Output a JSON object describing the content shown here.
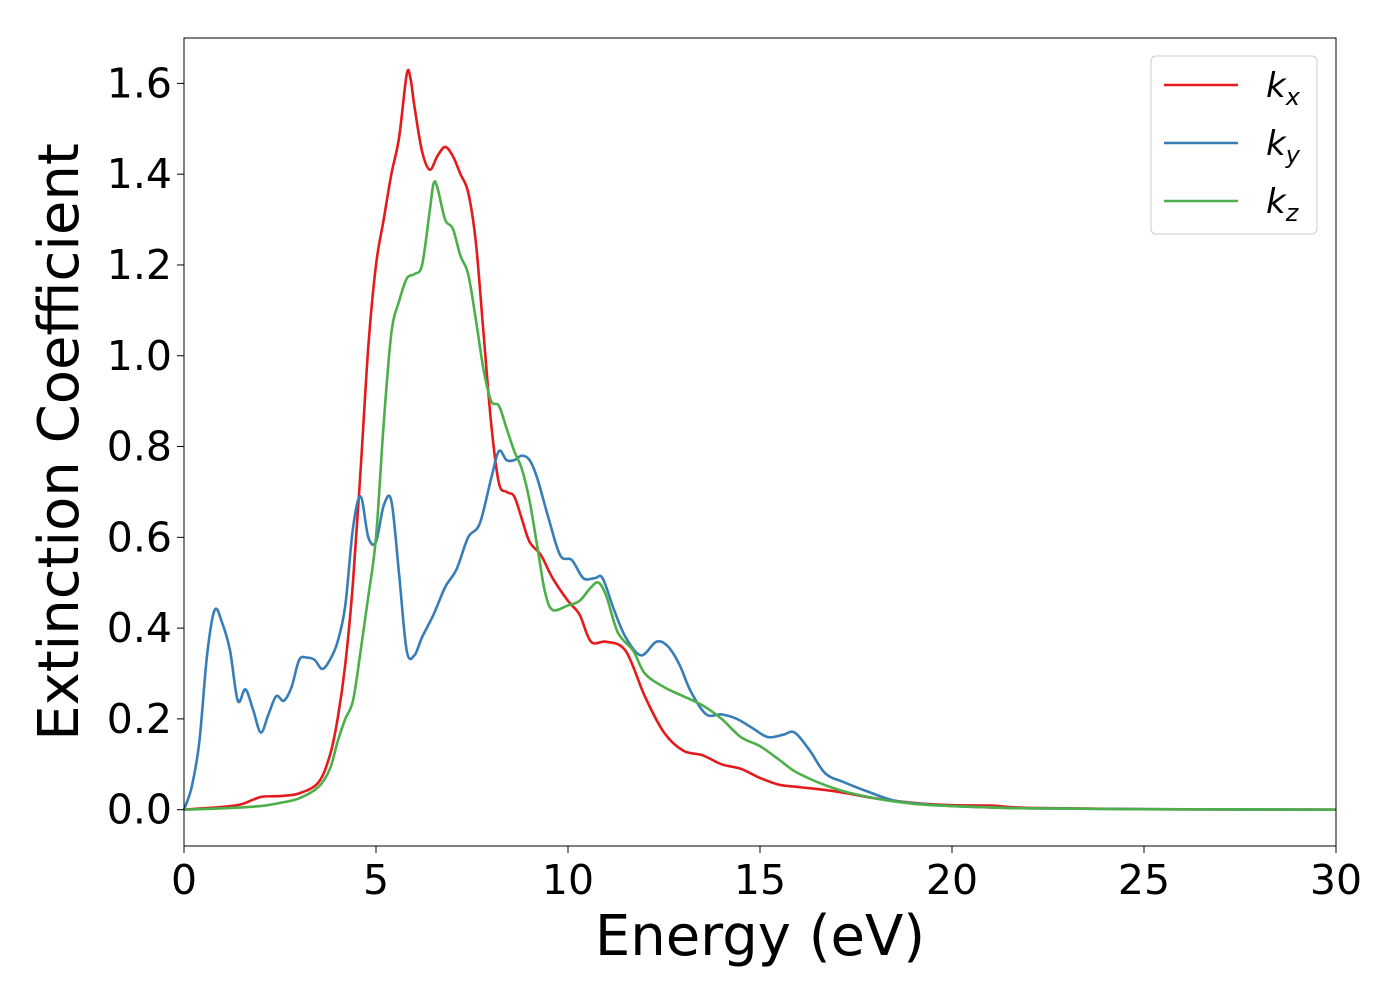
{
  "chart_data": {
    "type": "line",
    "title": "",
    "xlabel": "Energy (eV)",
    "ylabel": "Extinction Coefficient",
    "xlim": [
      0,
      30
    ],
    "ylim": [
      -0.08,
      1.7
    ],
    "xticks": [
      0,
      5,
      10,
      15,
      20,
      25,
      30
    ],
    "xtick_labels": [
      "0",
      "5",
      "10",
      "15",
      "20",
      "25",
      "30"
    ],
    "yticks": [
      0.0,
      0.2,
      0.4,
      0.6,
      0.8,
      1.0,
      1.2,
      1.4,
      1.6
    ],
    "ytick_labels": [
      "0.0",
      "0.2",
      "0.4",
      "0.6",
      "0.8",
      "1.0",
      "1.2",
      "1.4",
      "1.6"
    ],
    "grid": false,
    "legend_position": "top-right",
    "series": [
      {
        "name": "kx",
        "legend_base": "k",
        "legend_sub": "x",
        "color": "#e41a1c",
        "x": [
          0,
          0.5,
          1.0,
          1.5,
          2.0,
          2.5,
          3.0,
          3.5,
          3.8,
          4.0,
          4.2,
          4.4,
          4.6,
          4.8,
          5.0,
          5.2,
          5.4,
          5.6,
          5.8,
          5.9,
          6.0,
          6.2,
          6.4,
          6.6,
          6.8,
          7.0,
          7.2,
          7.4,
          7.6,
          7.8,
          8.0,
          8.2,
          8.4,
          8.6,
          8.8,
          9.0,
          9.3,
          9.6,
          10.0,
          10.3,
          10.6,
          11.0,
          11.5,
          12.0,
          12.5,
          13.0,
          13.5,
          14.0,
          14.5,
          15.0,
          15.5,
          16.0,
          17.0,
          18.0,
          19.0,
          20.0,
          21.0,
          22.0,
          25.0,
          30.0
        ],
        "y": [
          0.0,
          0.003,
          0.006,
          0.012,
          0.028,
          0.03,
          0.036,
          0.06,
          0.12,
          0.2,
          0.32,
          0.5,
          0.75,
          1.02,
          1.2,
          1.3,
          1.4,
          1.48,
          1.62,
          1.61,
          1.55,
          1.45,
          1.41,
          1.44,
          1.46,
          1.44,
          1.4,
          1.36,
          1.25,
          1.05,
          0.85,
          0.72,
          0.7,
          0.69,
          0.64,
          0.59,
          0.56,
          0.51,
          0.46,
          0.43,
          0.37,
          0.37,
          0.35,
          0.25,
          0.17,
          0.13,
          0.12,
          0.1,
          0.09,
          0.07,
          0.055,
          0.05,
          0.04,
          0.025,
          0.015,
          0.01,
          0.009,
          0.004,
          0.001,
          0.0
        ]
      },
      {
        "name": "ky",
        "legend_base": "k",
        "legend_sub": "y",
        "color": "#377eb8",
        "x": [
          0,
          0.2,
          0.4,
          0.6,
          0.8,
          1.0,
          1.2,
          1.4,
          1.6,
          1.8,
          2.0,
          2.2,
          2.4,
          2.6,
          2.8,
          3.0,
          3.2,
          3.4,
          3.6,
          3.8,
          4.0,
          4.2,
          4.4,
          4.6,
          4.8,
          5.0,
          5.2,
          5.4,
          5.6,
          5.8,
          6.0,
          6.2,
          6.5,
          6.8,
          7.1,
          7.4,
          7.7,
          8.0,
          8.2,
          8.4,
          8.6,
          8.8,
          9.0,
          9.2,
          9.5,
          9.8,
          10.1,
          10.4,
          10.7,
          10.9,
          11.2,
          11.5,
          11.9,
          12.3,
          12.6,
          12.9,
          13.2,
          13.6,
          14.0,
          14.4,
          14.8,
          15.2,
          15.6,
          15.9,
          16.3,
          16.7,
          17.2,
          17.8,
          18.5,
          19.3,
          20.0,
          21.0,
          22.0,
          25.0,
          30.0
        ],
        "y": [
          0.0,
          0.05,
          0.15,
          0.34,
          0.44,
          0.41,
          0.35,
          0.24,
          0.265,
          0.22,
          0.17,
          0.21,
          0.25,
          0.24,
          0.27,
          0.33,
          0.335,
          0.33,
          0.31,
          0.33,
          0.37,
          0.45,
          0.62,
          0.69,
          0.6,
          0.59,
          0.67,
          0.68,
          0.52,
          0.35,
          0.34,
          0.38,
          0.43,
          0.49,
          0.53,
          0.6,
          0.63,
          0.73,
          0.79,
          0.77,
          0.77,
          0.78,
          0.77,
          0.73,
          0.64,
          0.56,
          0.55,
          0.51,
          0.51,
          0.51,
          0.44,
          0.38,
          0.34,
          0.37,
          0.36,
          0.32,
          0.26,
          0.21,
          0.21,
          0.2,
          0.18,
          0.16,
          0.165,
          0.17,
          0.13,
          0.08,
          0.06,
          0.04,
          0.02,
          0.012,
          0.008,
          0.005,
          0.003,
          0.001,
          0.0
        ]
      },
      {
        "name": "kz",
        "legend_base": "k",
        "legend_sub": "z",
        "color": "#4daf4a",
        "x": [
          0,
          1.0,
          2.0,
          2.5,
          3.0,
          3.5,
          3.8,
          4.0,
          4.2,
          4.4,
          4.6,
          4.8,
          5.0,
          5.2,
          5.4,
          5.6,
          5.8,
          6.0,
          6.2,
          6.4,
          6.5,
          6.6,
          6.8,
          7.0,
          7.2,
          7.4,
          7.6,
          7.8,
          8.0,
          8.2,
          8.4,
          8.6,
          8.8,
          9.0,
          9.2,
          9.4,
          9.6,
          10.0,
          10.3,
          10.6,
          10.8,
          11.0,
          11.3,
          11.7,
          12.0,
          12.5,
          13.0,
          13.5,
          14.0,
          14.5,
          15.0,
          15.5,
          16.0,
          17.0,
          18.0,
          19.0,
          20.0,
          21.0,
          22.0,
          25.0,
          30.0
        ],
        "y": [
          0.0,
          0.003,
          0.008,
          0.015,
          0.025,
          0.05,
          0.09,
          0.15,
          0.2,
          0.24,
          0.35,
          0.47,
          0.6,
          0.85,
          1.05,
          1.12,
          1.17,
          1.18,
          1.2,
          1.32,
          1.38,
          1.37,
          1.3,
          1.28,
          1.22,
          1.18,
          1.08,
          0.97,
          0.9,
          0.89,
          0.84,
          0.79,
          0.75,
          0.68,
          0.58,
          0.48,
          0.44,
          0.45,
          0.46,
          0.49,
          0.5,
          0.47,
          0.39,
          0.35,
          0.3,
          0.27,
          0.25,
          0.23,
          0.2,
          0.16,
          0.14,
          0.11,
          0.08,
          0.045,
          0.025,
          0.013,
          0.008,
          0.005,
          0.003,
          0.001,
          0.0
        ]
      }
    ]
  }
}
